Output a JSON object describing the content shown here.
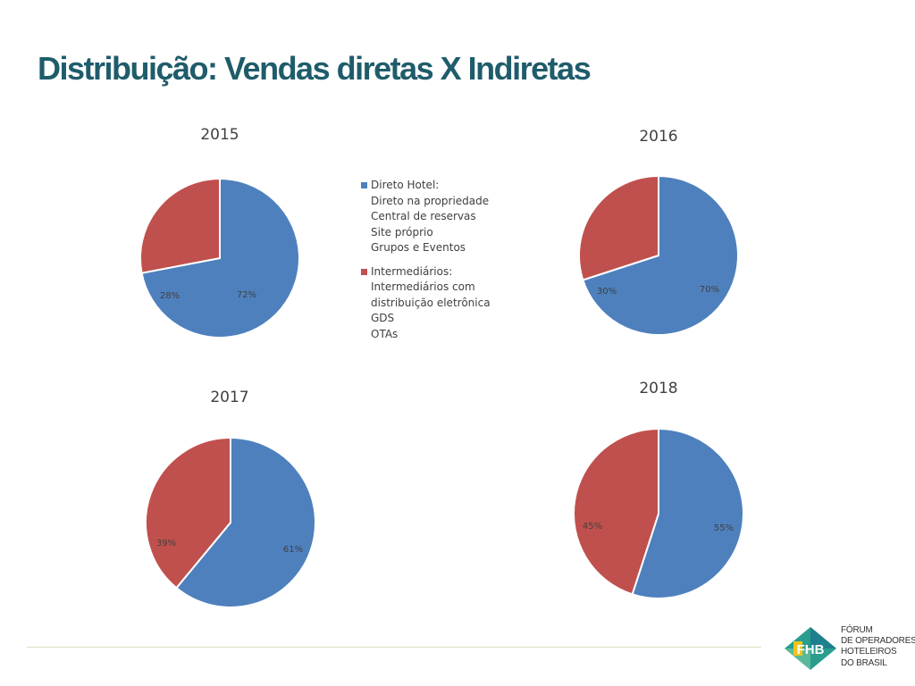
{
  "title": "Distribuição: Vendas diretas X Indiretas",
  "colors": {
    "direct": "#4e80bd",
    "indirect": "#c0504d",
    "title": "#1f5c6b"
  },
  "chart_data": [
    {
      "type": "pie",
      "title": "2015",
      "labels": [
        "Direto Hotel",
        "Intermediários"
      ],
      "values": [
        72,
        28
      ],
      "data_labels": [
        "72%",
        "28%"
      ]
    },
    {
      "type": "pie",
      "title": "2016",
      "labels": [
        "Direto Hotel",
        "Intermediários"
      ],
      "values": [
        70,
        30
      ],
      "data_labels": [
        "70%",
        "30%"
      ]
    },
    {
      "type": "pie",
      "title": "2017",
      "labels": [
        "Direto Hotel",
        "Intermediários"
      ],
      "values": [
        61,
        39
      ],
      "data_labels": [
        "61%",
        "39%"
      ]
    },
    {
      "type": "pie",
      "title": "2018",
      "labels": [
        "Direto Hotel",
        "Intermediários"
      ],
      "values": [
        55,
        45
      ],
      "data_labels": [
        "55%",
        "45%"
      ]
    }
  ],
  "legend": {
    "placement": "center",
    "entries": [
      {
        "lines": [
          "Direto Hotel:",
          "Direto na propriedade",
          "Central de reservas",
          "Site próprio",
          "Grupos e Eventos"
        ]
      },
      {
        "lines": [
          "Intermediários:",
          "Intermediários com",
          "distribuição eletrônica",
          "GDS",
          "OTAs"
        ]
      }
    ]
  },
  "logo": {
    "monogram": "FHB",
    "text_lines": [
      "FÓRUM",
      "DE OPERADORES",
      "HOTELEIROS",
      "DO BRASIL"
    ]
  }
}
